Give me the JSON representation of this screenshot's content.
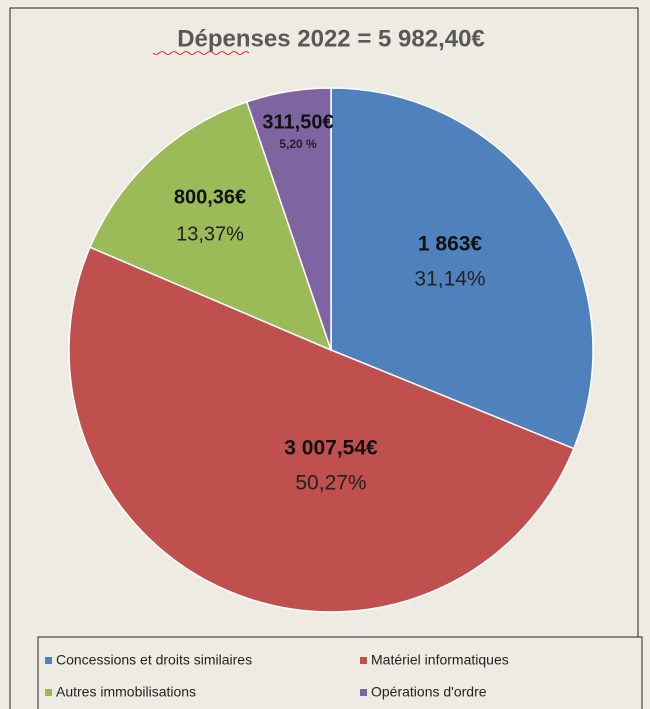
{
  "chart_data": {
    "type": "pie",
    "title": "Dépenses 2022 = 5 982,40€",
    "categories": [
      "Concessions et droits similaires",
      "Matériel informatiques",
      "Autres immobilisations",
      "Opérations d'ordre"
    ],
    "values": [
      1863,
      3007.54,
      800.36,
      311.5
    ],
    "value_labels": [
      "1 863€",
      "3 007,54€",
      "800,36€",
      "311,50€"
    ],
    "percentages": [
      31.14,
      50.27,
      13.37,
      5.2
    ],
    "percentage_labels": [
      "31,14%",
      "50,27%",
      "13,37%",
      "5,20 %"
    ],
    "colors": [
      "#4f81bd",
      "#c0504d",
      "#9bbb59",
      "#8064a2"
    ],
    "legend": "bottom"
  }
}
